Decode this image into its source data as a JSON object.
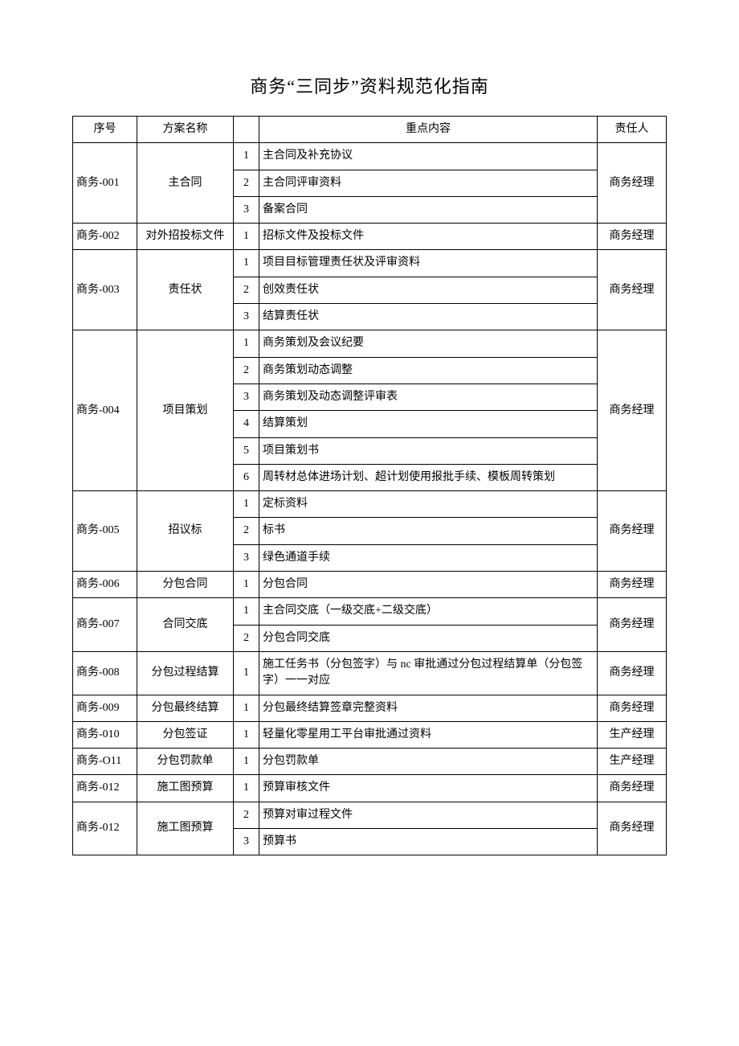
{
  "title": "商务“三同步”资料规范化指南",
  "columns": {
    "seq": "序号",
    "plan": "方案名称",
    "idx": "",
    "content": "重点内容",
    "responsible": "责任人"
  },
  "groups": [
    {
      "seq": "商务-001",
      "plan": "主合同",
      "responsible": "商务经理",
      "items": [
        {
          "idx": "1",
          "content": "主合同及补充协议"
        },
        {
          "idx": "2",
          "content": "主合同评审资料"
        },
        {
          "idx": "3",
          "content": "备案合同"
        }
      ]
    },
    {
      "seq": "商务-002",
      "plan": "对外招投标文件",
      "responsible": "商务经理",
      "items": [
        {
          "idx": "1",
          "content": "招标文件及投标文件"
        }
      ]
    },
    {
      "seq": "商务-003",
      "plan": "责任状",
      "responsible": "商务经理",
      "items": [
        {
          "idx": "1",
          "content": "项目目标管理责任状及评审资料"
        },
        {
          "idx": "2",
          "content": "创效责任状"
        },
        {
          "idx": "3",
          "content": "结算责任状"
        }
      ]
    },
    {
      "seq": "商务-004",
      "plan": "项目策划",
      "responsible": "商务经理",
      "items": [
        {
          "idx": "1",
          "content": "商务策划及会议纪要"
        },
        {
          "idx": "2",
          "content": "商务策划动态调整"
        },
        {
          "idx": "3",
          "content": "商务策划及动态调整评审表"
        },
        {
          "idx": "4",
          "content": "结算策划"
        },
        {
          "idx": "5",
          "content": "项目策划书"
        },
        {
          "idx": "6",
          "content": "周转材总体进场计划、超计划使用报批手续、模板周转策划"
        }
      ]
    },
    {
      "seq": "商务-005",
      "plan": "招议标",
      "responsible": "商务经理",
      "items": [
        {
          "idx": "1",
          "content": "定标资料"
        },
        {
          "idx": "2",
          "content": "标书"
        },
        {
          "idx": "3",
          "content": "绿色通道手续"
        }
      ]
    },
    {
      "seq": "商务-006",
      "plan": "分包合同",
      "responsible": "商务经理",
      "items": [
        {
          "idx": "1",
          "content": "分包合同"
        }
      ]
    },
    {
      "seq": "商务-007",
      "plan": "合同交底",
      "responsible": "商务经理",
      "items": [
        {
          "idx": "1",
          "content": "主合同交底（一级交底+二级交底）"
        },
        {
          "idx": "2",
          "content": "分包合同交底"
        }
      ]
    },
    {
      "seq": "商务-008",
      "plan": "分包过程结算",
      "responsible": "商务经理",
      "items": [
        {
          "idx": "1",
          "content": "施工任务书（分包签字）与 nc 审批通过分包过程结算单（分包签字）一一对应"
        }
      ]
    },
    {
      "seq": "商务-009",
      "plan": "分包最终结算",
      "responsible": "商务经理",
      "items": [
        {
          "idx": "1",
          "content": "分包最终结算签章完整资料"
        }
      ]
    },
    {
      "seq": "商务-010",
      "plan": "分包签证",
      "responsible": "生产经理",
      "items": [
        {
          "idx": "1",
          "content": "轻量化零星用工平台审批通过资料"
        }
      ]
    },
    {
      "seq": "商务-O11",
      "plan": "分包罚款单",
      "responsible": "生产经理",
      "items": [
        {
          "idx": "1",
          "content": "分包罚款单"
        }
      ]
    },
    {
      "seq": "商务-012",
      "plan": "施工图预算",
      "responsible": "商务经理",
      "items": [
        {
          "idx": "1",
          "content": "预算审核文件"
        }
      ]
    },
    {
      "seq": "商务-012",
      "plan": "施工图预算",
      "responsible": "商务经理",
      "items": [
        {
          "idx": "2",
          "content": "预算对审过程文件"
        },
        {
          "idx": "3",
          "content": "预算书"
        }
      ]
    }
  ]
}
